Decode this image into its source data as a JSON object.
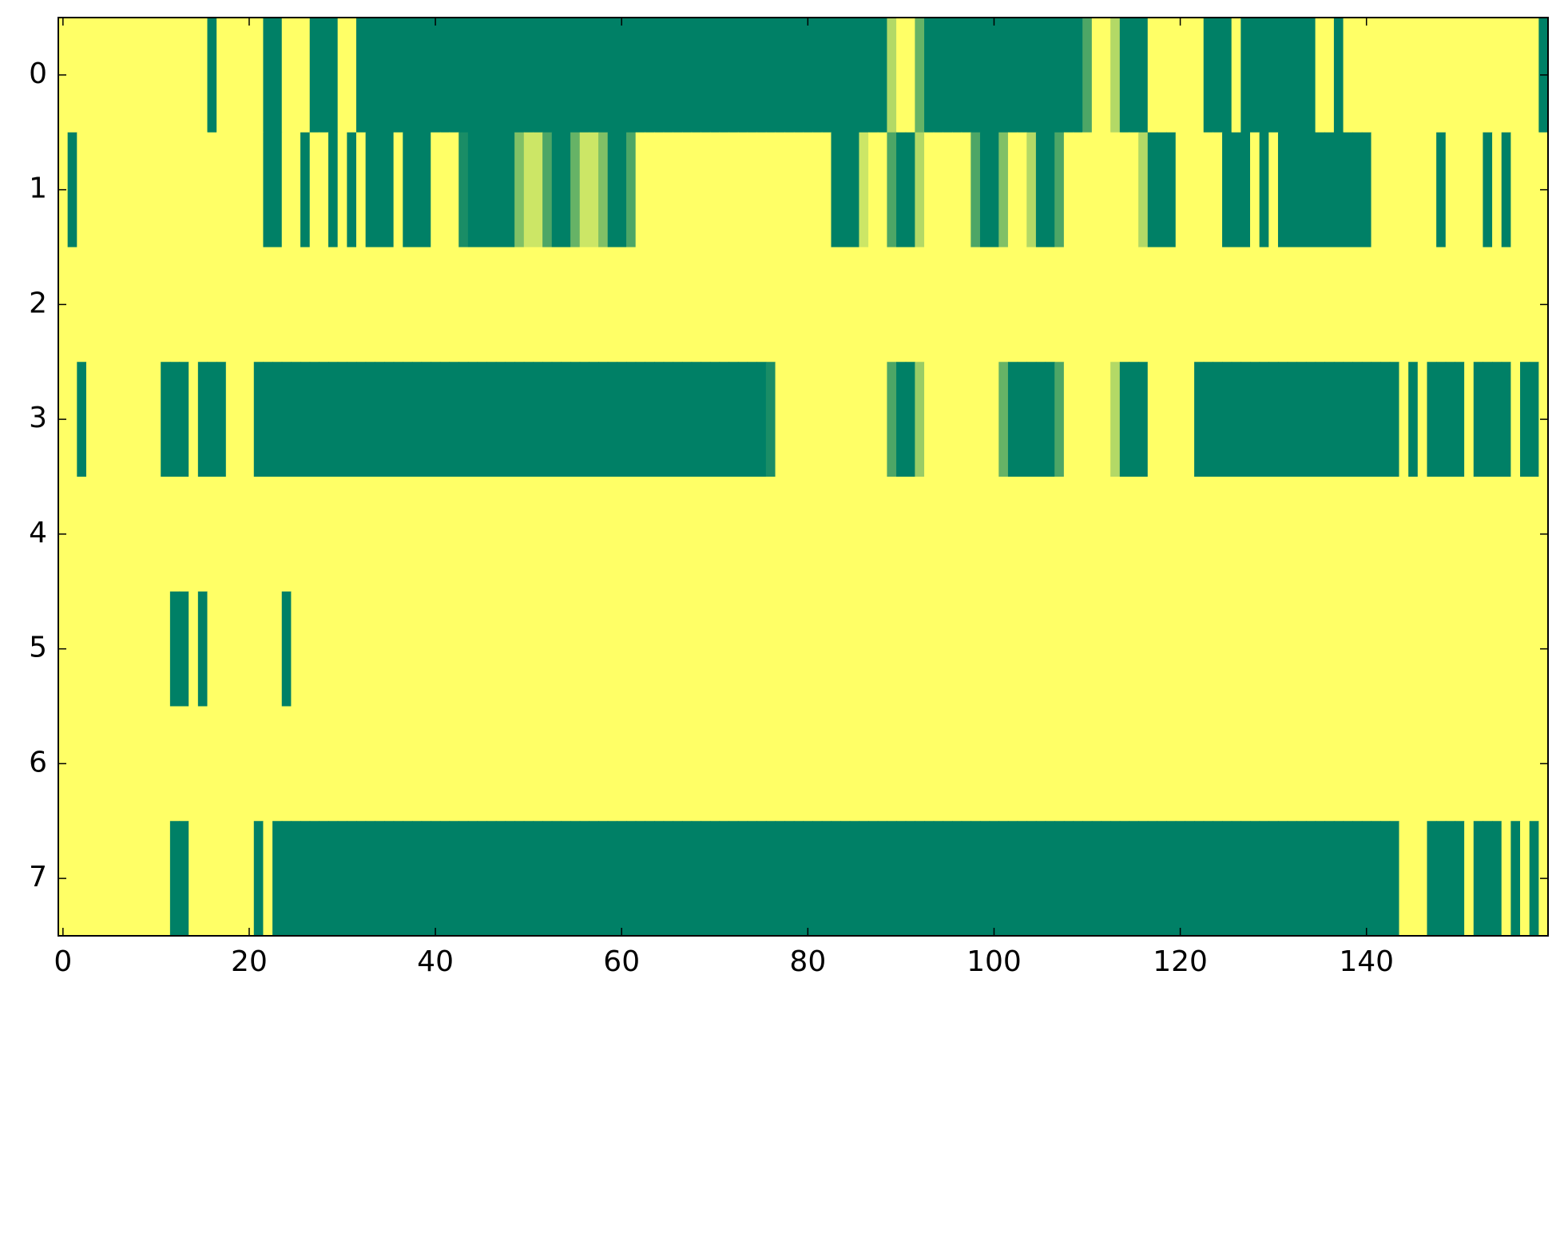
{
  "chart_data": {
    "type": "heatmap",
    "colormap": [
      "#008066",
      "#ffff66"
    ],
    "clim": [
      0,
      1
    ],
    "xlim": [
      -0.5,
      159.5
    ],
    "ylim": [
      7.5,
      -0.5
    ],
    "xticks": [
      0,
      20,
      40,
      60,
      80,
      100,
      120,
      140
    ],
    "yticks": [
      0,
      1,
      2,
      3,
      4,
      5,
      6,
      7
    ],
    "z": [
      [
        1,
        1,
        1,
        1,
        1,
        1,
        1,
        1,
        1,
        1,
        1,
        1,
        1,
        1,
        1,
        1,
        0,
        1,
        1,
        1,
        1,
        1,
        0,
        0,
        1,
        1,
        1,
        0,
        0,
        0,
        1,
        1,
        0,
        0,
        0,
        0,
        0,
        0,
        0,
        0,
        0,
        0,
        0,
        0,
        0,
        0,
        0,
        0,
        0,
        0,
        0,
        0,
        0,
        0,
        0,
        0,
        0,
        0,
        0,
        0,
        0,
        0,
        0,
        0,
        0,
        0,
        0,
        0,
        0,
        0,
        0,
        0,
        0,
        0,
        0,
        0,
        0,
        0,
        0,
        0,
        0,
        0,
        0,
        0,
        0,
        0,
        0,
        0,
        0,
        0.7,
        1,
        1,
        0.4,
        0,
        0,
        0,
        0,
        0,
        0,
        0,
        0,
        0,
        0,
        0,
        0,
        0,
        0,
        0,
        0,
        0,
        0.3,
        1,
        1,
        0.7,
        0,
        0,
        0,
        1,
        1,
        1,
        1,
        1,
        1,
        0,
        0,
        0,
        1,
        0,
        0,
        0,
        0,
        0,
        0,
        0,
        0,
        1,
        1,
        0,
        1,
        1,
        1,
        1,
        1,
        1,
        1,
        1,
        1,
        1,
        1,
        1,
        1,
        1,
        1,
        1,
        1,
        1,
        1,
        1,
        1,
        0
      ],
      [
        1,
        0,
        1,
        1,
        1,
        1,
        1,
        1,
        1,
        1,
        1,
        1,
        1,
        1,
        1,
        1,
        1,
        1,
        1,
        1,
        1,
        1,
        0,
        0,
        1,
        1,
        0,
        1,
        1,
        0,
        1,
        0,
        1,
        0,
        0,
        0,
        1,
        0,
        0,
        0,
        1,
        1,
        1,
        0.1,
        0,
        0,
        0,
        0,
        0,
        0.5,
        0.8,
        0.8,
        0.3,
        0,
        0,
        0.4,
        0.8,
        0.8,
        0.5,
        0,
        0,
        0.3,
        1,
        1,
        1,
        1,
        1,
        1,
        1,
        1,
        1,
        1,
        1,
        1,
        1,
        1,
        1,
        1,
        1,
        1,
        1,
        1,
        1,
        0,
        0,
        0,
        0.8,
        1,
        1,
        0.3,
        0,
        0,
        0.7,
        1,
        1,
        1,
        1,
        1,
        0.3,
        0,
        0,
        0.5,
        1,
        1,
        0.7,
        0,
        0,
        0.3,
        1,
        1,
        1,
        1,
        1,
        1,
        1,
        1,
        0.7,
        0,
        0,
        0,
        1,
        1,
        1,
        1,
        1,
        0,
        0,
        0,
        1,
        0,
        1,
        0,
        0,
        0,
        0,
        0,
        0,
        0,
        0,
        0,
        0,
        1,
        1,
        1,
        1,
        1,
        1,
        1,
        0,
        1,
        1,
        1,
        1,
        0,
        1,
        0,
        1,
        1,
        1,
        1
      ],
      [
        1,
        1,
        1,
        1,
        1,
        1,
        1,
        1,
        1,
        1,
        1,
        1,
        1,
        1,
        1,
        1,
        1,
        1,
        1,
        1,
        1,
        1,
        1,
        1,
        1,
        1,
        1,
        1,
        1,
        1,
        1,
        1,
        1,
        1,
        1,
        1,
        1,
        1,
        1,
        1,
        1,
        1,
        1,
        1,
        1,
        1,
        1,
        1,
        1,
        1,
        1,
        1,
        1,
        1,
        1,
        1,
        1,
        1,
        1,
        1,
        1,
        1,
        1,
        1,
        1,
        1,
        1,
        1,
        1,
        1,
        1,
        1,
        1,
        1,
        1,
        1,
        1,
        1,
        1,
        1,
        1,
        1,
        1,
        1,
        1,
        1,
        1,
        1,
        1,
        1,
        1,
        1,
        1,
        1,
        1,
        1,
        1,
        1,
        1,
        1,
        1,
        1,
        1,
        1,
        1,
        1,
        1,
        1,
        1,
        1,
        1,
        1,
        1,
        1,
        1,
        1,
        1,
        1,
        1,
        1,
        1,
        1,
        1,
        1,
        1,
        1,
        1,
        1,
        1,
        1,
        1,
        1,
        1,
        1,
        1,
        1,
        1,
        1,
        1,
        1,
        1,
        1,
        1,
        1,
        1,
        1,
        1,
        1,
        1,
        1,
        1,
        1,
        1,
        1,
        1,
        1,
        1,
        1,
        1,
        1
      ],
      [
        1,
        1,
        0,
        1,
        1,
        1,
        1,
        1,
        1,
        1,
        1,
        0,
        0,
        0,
        1,
        0,
        0,
        0,
        1,
        1,
        1,
        0,
        0,
        0,
        0,
        0,
        0,
        0,
        0,
        0,
        0,
        0,
        0,
        0,
        0,
        0,
        0,
        0,
        0,
        0,
        0,
        0,
        0,
        0,
        0,
        0,
        0,
        0,
        0,
        0,
        0,
        0,
        0,
        0,
        0,
        0,
        0,
        0,
        0,
        0,
        0,
        0,
        0,
        0,
        0,
        0,
        0,
        0,
        0,
        0,
        0,
        0,
        0,
        0,
        0,
        0,
        0.1,
        1,
        1,
        1,
        1,
        1,
        1,
        1,
        1,
        1,
        1,
        1,
        1,
        0.3,
        0,
        0,
        0.6,
        1,
        1,
        1,
        1,
        1,
        1,
        1,
        1,
        0.4,
        0,
        0,
        0,
        0,
        0,
        0.3,
        1,
        1,
        1,
        1,
        1,
        0.7,
        0,
        0,
        0,
        1,
        1,
        1,
        1,
        1,
        0,
        0,
        0,
        0,
        0,
        0,
        0,
        0,
        0,
        0,
        0,
        0,
        0,
        0,
        0,
        0,
        0,
        0,
        0,
        0,
        0,
        0,
        1,
        0,
        1,
        0,
        0,
        0,
        0,
        1,
        0,
        0,
        0,
        0,
        1,
        0,
        0,
        1
      ],
      [
        1,
        1,
        1,
        1,
        1,
        1,
        1,
        1,
        1,
        1,
        1,
        1,
        1,
        1,
        1,
        1,
        1,
        1,
        1,
        1,
        1,
        1,
        1,
        1,
        1,
        1,
        1,
        1,
        1,
        1,
        1,
        1,
        1,
        1,
        1,
        1,
        1,
        1,
        1,
        1,
        1,
        1,
        1,
        1,
        1,
        1,
        1,
        1,
        1,
        1,
        1,
        1,
        1,
        1,
        1,
        1,
        1,
        1,
        1,
        1,
        1,
        1,
        1,
        1,
        1,
        1,
        1,
        1,
        1,
        1,
        1,
        1,
        1,
        1,
        1,
        1,
        1,
        1,
        1,
        1,
        1,
        1,
        1,
        1,
        1,
        1,
        1,
        1,
        1,
        1,
        1,
        1,
        1,
        1,
        1,
        1,
        1,
        1,
        1,
        1,
        1,
        1,
        1,
        1,
        1,
        1,
        1,
        1,
        1,
        1,
        1,
        1,
        1,
        1,
        1,
        1,
        1,
        1,
        1,
        1,
        1,
        1,
        1,
        1,
        1,
        1,
        1,
        1,
        1,
        1,
        1,
        1,
        1,
        1,
        1,
        1,
        1,
        1,
        1,
        1,
        1,
        1,
        1,
        1,
        1,
        1,
        1,
        1,
        1,
        1,
        1,
        1,
        1,
        1,
        1,
        1,
        1,
        1,
        1,
        1
      ],
      [
        1,
        1,
        1,
        1,
        1,
        1,
        1,
        1,
        1,
        1,
        1,
        1,
        0,
        0,
        1,
        0,
        1,
        1,
        1,
        1,
        1,
        1,
        1,
        1,
        0,
        1,
        1,
        1,
        1,
        1,
        1,
        1,
        1,
        1,
        1,
        1,
        1,
        1,
        1,
        1,
        1,
        1,
        1,
        1,
        1,
        1,
        1,
        1,
        1,
        1,
        1,
        1,
        1,
        1,
        1,
        1,
        1,
        1,
        1,
        1,
        1,
        1,
        1,
        1,
        1,
        1,
        1,
        1,
        1,
        1,
        1,
        1,
        1,
        1,
        1,
        1,
        1,
        1,
        1,
        1,
        1,
        1,
        1,
        1,
        1,
        1,
        1,
        1,
        1,
        1,
        1,
        1,
        1,
        1,
        1,
        1,
        1,
        1,
        1,
        1,
        1,
        1,
        1,
        1,
        1,
        1,
        1,
        1,
        1,
        1,
        1,
        1,
        1,
        1,
        1,
        1,
        1,
        1,
        1,
        1,
        1,
        1,
        1,
        1,
        1,
        1,
        1,
        1,
        1,
        1,
        1,
        1,
        1,
        1,
        1,
        1,
        1,
        1,
        1,
        1,
        1,
        1,
        1,
        1,
        1,
        1,
        1,
        1,
        1,
        1,
        1,
        1,
        1,
        1,
        1,
        1,
        1,
        1,
        1,
        1
      ],
      [
        1,
        1,
        1,
        1,
        1,
        1,
        1,
        1,
        1,
        1,
        1,
        1,
        1,
        1,
        1,
        1,
        1,
        1,
        1,
        1,
        1,
        1,
        1,
        1,
        1,
        1,
        1,
        1,
        1,
        1,
        1,
        1,
        1,
        1,
        1,
        1,
        1,
        1,
        1,
        1,
        1,
        1,
        1,
        1,
        1,
        1,
        1,
        1,
        1,
        1,
        1,
        1,
        1,
        1,
        1,
        1,
        1,
        1,
        1,
        1,
        1,
        1,
        1,
        1,
        1,
        1,
        1,
        1,
        1,
        1,
        1,
        1,
        1,
        1,
        1,
        1,
        1,
        1,
        1,
        1,
        1,
        1,
        1,
        1,
        1,
        1,
        1,
        1,
        1,
        1,
        1,
        1,
        1,
        1,
        1,
        1,
        1,
        1,
        1,
        1,
        1,
        1,
        1,
        1,
        1,
        1,
        1,
        1,
        1,
        1,
        1,
        1,
        1,
        1,
        1,
        1,
        1,
        1,
        1,
        1,
        1,
        1,
        1,
        1,
        1,
        1,
        1,
        1,
        1,
        1,
        1,
        1,
        1,
        1,
        1,
        1,
        1,
        1,
        1,
        1,
        1,
        1,
        1,
        1,
        1,
        1,
        1,
        1,
        1,
        1,
        1,
        1,
        1,
        1,
        1,
        1,
        1,
        1,
        1,
        1
      ],
      [
        1,
        1,
        1,
        1,
        1,
        1,
        1,
        1,
        1,
        1,
        1,
        1,
        0,
        0,
        1,
        1,
        1,
        1,
        1,
        1,
        1,
        0,
        1,
        0,
        0,
        0,
        0,
        0,
        0,
        0,
        0,
        0,
        0,
        0,
        0,
        0,
        0,
        0,
        0,
        0,
        0,
        0,
        0,
        0,
        0,
        0,
        0,
        0,
        0,
        0,
        0,
        0,
        0,
        0,
        0,
        0,
        0,
        0,
        0,
        0,
        0,
        0,
        0,
        0,
        0,
        0,
        0,
        0,
        0,
        0,
        0,
        0,
        0,
        0,
        0,
        0,
        0,
        0,
        0,
        0,
        0,
        0,
        0,
        0,
        0,
        0,
        0,
        0,
        0,
        0,
        0,
        0,
        0,
        0,
        0,
        0,
        0,
        0,
        0,
        0,
        0,
        0,
        0,
        0,
        0,
        0,
        0,
        0,
        0,
        0,
        0,
        0,
        0,
        0,
        0,
        0,
        0,
        0,
        0,
        0,
        0,
        0,
        0,
        0,
        0,
        0,
        0,
        0,
        0,
        0,
        0,
        0,
        0,
        0,
        0,
        0,
        0,
        0,
        0,
        0,
        0,
        0,
        0,
        0,
        1,
        1,
        1,
        0,
        0,
        0,
        0,
        1,
        0,
        0,
        0,
        1,
        0,
        1,
        0,
        1
      ]
    ]
  }
}
